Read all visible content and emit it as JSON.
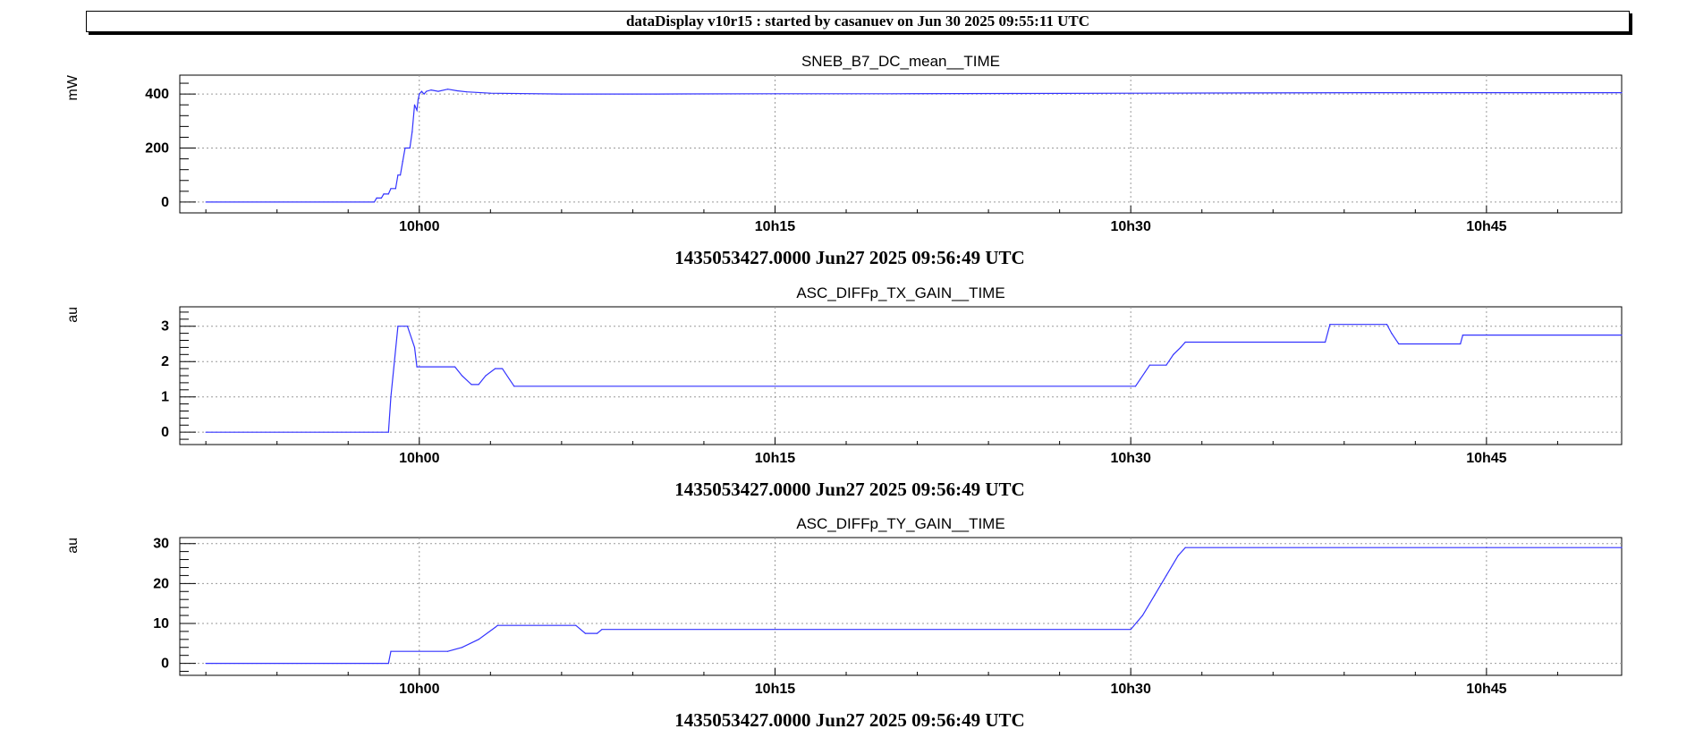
{
  "header": {
    "text": "dataDisplay v10r15 : started by casanuev on Jun 30 2025 09:55:11 UTC"
  },
  "colors": {
    "line": "#3333ff",
    "grid": "#9a9a9a",
    "axis": "#000000",
    "background": "#ffffff"
  },
  "chart_data": [
    {
      "type": "line",
      "title": "SNEB_B7_DC_mean__TIME",
      "ylabel": "mW",
      "xlabel": "1435053427.0000 Jun27 2025 09:56:49 UTC",
      "x_unit": "minutes after 10h00",
      "xlim": [
        -10.1,
        50.7
      ],
      "ylim": [
        -40,
        470
      ],
      "x_ticks": [
        {
          "value": 0,
          "label": "10h00"
        },
        {
          "value": 15,
          "label": "10h15"
        },
        {
          "value": 30,
          "label": "10h30"
        },
        {
          "value": 45,
          "label": "10h45"
        }
      ],
      "y_ticks": [
        {
          "value": 0,
          "label": "0"
        },
        {
          "value": 200,
          "label": "200"
        },
        {
          "value": 400,
          "label": "400"
        }
      ],
      "grid": true,
      "series": [
        {
          "x": [
            -9.0,
            -1.9,
            -1.8,
            -1.6,
            -1.5,
            -1.3,
            -1.2,
            -1.0,
            -0.9,
            -0.8,
            -0.7,
            -0.6,
            -0.5,
            -0.4,
            -0.3,
            -0.2,
            -0.1,
            -0.05,
            0.0,
            0.1,
            0.2,
            0.3,
            0.5,
            0.8,
            1.2,
            1.6,
            2.0,
            3.0,
            6.0,
            10.0,
            15.0,
            20.0,
            25.0,
            30.0,
            35.0,
            40.0,
            45.0,
            50.7
          ],
          "y": [
            0,
            0,
            15,
            15,
            30,
            30,
            50,
            50,
            100,
            100,
            150,
            200,
            200,
            200,
            260,
            360,
            340,
            380,
            400,
            410,
            400,
            410,
            415,
            410,
            418,
            412,
            408,
            403,
            400,
            400,
            401,
            401,
            402,
            403,
            404,
            405,
            405,
            405
          ]
        }
      ]
    },
    {
      "type": "line",
      "title": "ASC_DIFFp_TX_GAIN__TIME",
      "ylabel": "au",
      "xlabel": "1435053427.0000 Jun27 2025 09:56:49 UTC",
      "x_unit": "minutes after 10h00",
      "xlim": [
        -10.1,
        50.7
      ],
      "ylim": [
        -0.35,
        3.55
      ],
      "x_ticks": [
        {
          "value": 0,
          "label": "10h00"
        },
        {
          "value": 15,
          "label": "10h15"
        },
        {
          "value": 30,
          "label": "10h30"
        },
        {
          "value": 45,
          "label": "10h45"
        }
      ],
      "y_ticks": [
        {
          "value": 0,
          "label": "0"
        },
        {
          "value": 1,
          "label": "1"
        },
        {
          "value": 2,
          "label": "2"
        },
        {
          "value": 3,
          "label": "3"
        }
      ],
      "grid": true,
      "series": [
        {
          "x": [
            -9.0,
            -1.3,
            -1.2,
            -0.9,
            -0.5,
            -0.2,
            -0.1,
            1.5,
            1.8,
            2.2,
            2.5,
            2.8,
            3.2,
            3.5,
            3.8,
            4.0,
            30.2,
            30.4,
            30.6,
            30.8,
            31.5,
            31.8,
            32.1,
            32.3,
            38.2,
            38.4,
            40.8,
            41.0,
            41.3,
            43.9,
            44.0,
            50.7
          ],
          "y": [
            0,
            0,
            1.0,
            3.0,
            3.0,
            2.4,
            1.85,
            1.85,
            1.6,
            1.35,
            1.35,
            1.6,
            1.8,
            1.8,
            1.5,
            1.3,
            1.3,
            1.5,
            1.7,
            1.9,
            1.9,
            2.2,
            2.4,
            2.55,
            2.55,
            3.05,
            3.05,
            2.8,
            2.5,
            2.5,
            2.75,
            2.75
          ]
        }
      ]
    },
    {
      "type": "line",
      "title": "ASC_DIFFp_TY_GAIN__TIME",
      "ylabel": "au",
      "xlabel": "1435053427.0000 Jun27 2025 09:56:49 UTC",
      "x_unit": "minutes after 10h00",
      "xlim": [
        -10.1,
        50.7
      ],
      "ylim": [
        -3,
        31.5
      ],
      "x_ticks": [
        {
          "value": 0,
          "label": "10h00"
        },
        {
          "value": 15,
          "label": "10h15"
        },
        {
          "value": 30,
          "label": "10h30"
        },
        {
          "value": 45,
          "label": "10h45"
        }
      ],
      "y_ticks": [
        {
          "value": 0,
          "label": "0"
        },
        {
          "value": 10,
          "label": "10"
        },
        {
          "value": 20,
          "label": "20"
        },
        {
          "value": 30,
          "label": "30"
        }
      ],
      "grid": true,
      "series": [
        {
          "x": [
            -9.0,
            -1.3,
            -1.2,
            1.2,
            1.8,
            2.5,
            3.2,
            3.3,
            6.6,
            7.0,
            7.5,
            7.7,
            30.0,
            30.5,
            31.0,
            31.5,
            32.0,
            32.3,
            50.7
          ],
          "y": [
            0,
            0,
            3,
            3,
            4,
            6,
            9,
            9.5,
            9.5,
            7.5,
            7.5,
            8.5,
            8.5,
            12,
            17,
            22,
            27,
            29,
            29
          ]
        }
      ]
    }
  ]
}
